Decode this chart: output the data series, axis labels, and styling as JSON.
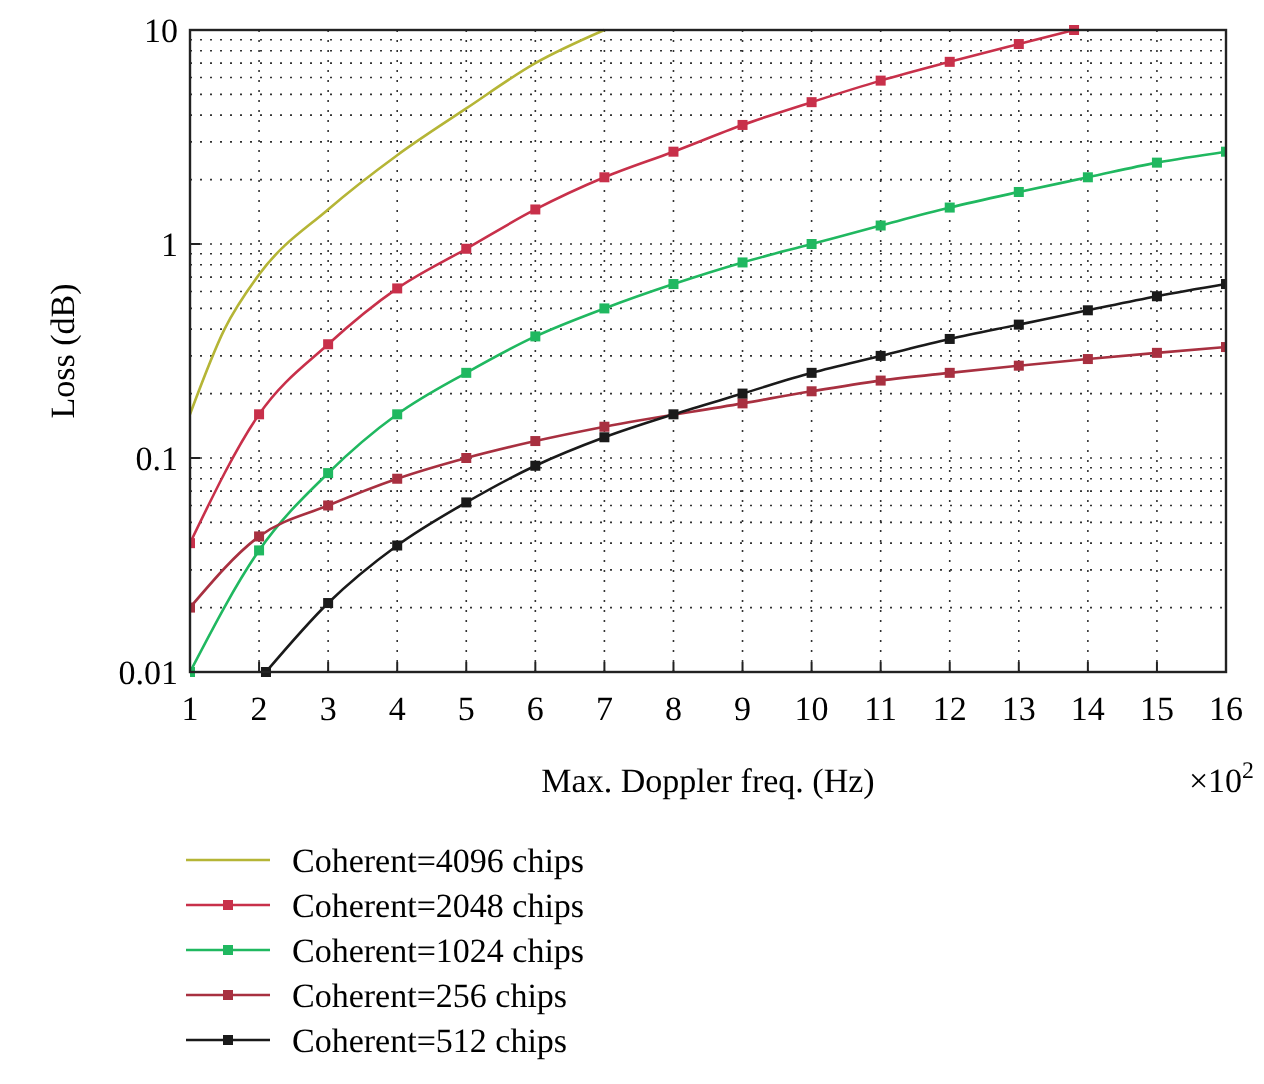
{
  "chart_data": {
    "type": "line",
    "xlabel": "Max. Doppler freq. (Hz)",
    "ylabel": "Loss (dB)",
    "annotations": [
      "×10$^{2}$"
    ],
    "log": "y",
    "grid": true,
    "legend": "bottom",
    "line_style": "solid",
    "xlim": [
      1,
      16
    ],
    "xticks": [
      1,
      2,
      3,
      4,
      5,
      6,
      7,
      8,
      9,
      10,
      11,
      12,
      13,
      14,
      15,
      16
    ],
    "ylim": [
      0.01,
      10
    ],
    "yticks": [
      0.01,
      0.1,
      1,
      10
    ],
    "series": [
      {
        "name": "Coherent=4096 chips",
        "color": "#b5b536",
        "marker": "none",
        "x": [
          1,
          1.5,
          2,
          3,
          4,
          5,
          6,
          7
        ],
        "values": [
          0.16,
          0.4,
          0.72,
          1.45,
          2.6,
          4.3,
          7,
          10
        ]
      },
      {
        "name": "Coherent=2048 chips",
        "color": "#c8304a",
        "marker": "square",
        "x": [
          1,
          2,
          3,
          4,
          5,
          6,
          7,
          8,
          9,
          10,
          11,
          12,
          13,
          13.8
        ],
        "values": [
          0.04,
          0.16,
          0.34,
          0.62,
          0.95,
          1.45,
          2.05,
          2.7,
          3.6,
          4.6,
          5.8,
          7.1,
          8.6,
          10
        ]
      },
      {
        "name": "Coherent=1024 chips",
        "color": "#20b860",
        "marker": "square",
        "x": [
          1,
          2,
          3,
          4,
          5,
          6,
          7,
          8,
          9,
          10,
          11,
          12,
          13,
          14,
          15,
          16
        ],
        "values": [
          0.01,
          0.037,
          0.085,
          0.16,
          0.25,
          0.37,
          0.5,
          0.65,
          0.82,
          1.0,
          1.22,
          1.48,
          1.75,
          2.05,
          2.4,
          2.7
        ]
      },
      {
        "name": "Coherent=256 chips",
        "color": "#a83040",
        "marker": "square",
        "x": [
          1,
          2,
          3,
          4,
          5,
          6,
          7,
          8,
          9,
          10,
          11,
          12,
          13,
          14,
          15,
          16
        ],
        "values": [
          0.02,
          0.043,
          0.06,
          0.08,
          0.1,
          0.12,
          0.14,
          null,
          0.18,
          0.205,
          0.23,
          0.25,
          0.27,
          0.29,
          0.31,
          0.33
        ]
      },
      {
        "name": "Coherent=512 chips",
        "color": "#1a1a1a",
        "marker": "square",
        "x": [
          2.1,
          3,
          4,
          5,
          6,
          7,
          8,
          9,
          10,
          11,
          12,
          13,
          14,
          15,
          16
        ],
        "values": [
          0.01,
          0.021,
          0.039,
          0.062,
          0.092,
          0.125,
          0.16,
          0.2,
          0.25,
          0.3,
          0.36,
          0.42,
          0.49,
          0.57,
          0.65
        ]
      }
    ]
  }
}
